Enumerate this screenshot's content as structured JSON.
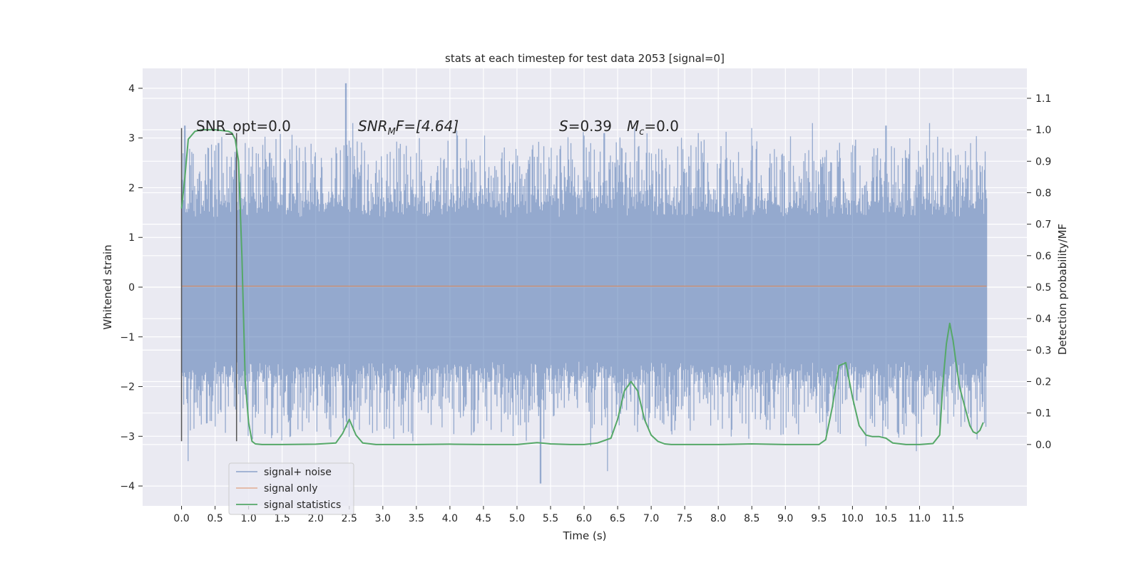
{
  "chart_data": {
    "type": "line",
    "title": "stats at each timestep for test data 2053 [signal=0]",
    "xlabel": "Time (s)",
    "ylabel": "Whitened strain",
    "y2label": "Detection probability/MF",
    "xlim": [
      -0.58,
      12.6
    ],
    "ylim": [
      -4.4,
      4.4
    ],
    "y2lim": [
      -0.195,
      1.195
    ],
    "x_ticks": [
      0.0,
      0.5,
      1.0,
      1.5,
      2.0,
      2.5,
      3.0,
      3.5,
      4.0,
      4.5,
      5.0,
      5.5,
      6.0,
      6.5,
      7.0,
      7.5,
      8.0,
      8.5,
      9.0,
      9.5,
      10.0,
      10.5,
      11.0,
      11.5
    ],
    "x_tick_labels": [
      "0.0",
      "0.5",
      "1.0",
      "1.5",
      "2.0",
      "2.5",
      "3.0",
      "3.5",
      "4.0",
      "4.5",
      "5.0",
      "5.5",
      "6.0",
      "6.5",
      "7.0",
      "7.5",
      "8.0",
      "8.5",
      "9.0",
      "9.5",
      "10.0",
      "10.5",
      "11.0",
      "11.5"
    ],
    "y_ticks": [
      -4,
      -3,
      -2,
      -1,
      0,
      1,
      2,
      3,
      4
    ],
    "y_tick_labels": [
      "−4",
      "−3",
      "−2",
      "−1",
      "0",
      "1",
      "2",
      "3",
      "4"
    ],
    "y2_ticks": [
      0.0,
      0.1,
      0.2,
      0.3,
      0.4,
      0.5,
      0.6,
      0.7,
      0.8,
      0.9,
      1.0,
      1.1
    ],
    "y2_tick_labels": [
      "0.0",
      "0.1",
      "0.2",
      "0.3",
      "0.4",
      "0.5",
      "0.6",
      "0.7",
      "0.8",
      "0.9",
      "1.0",
      "1.1"
    ],
    "grid": true,
    "legend_position": "lower-left",
    "series": [
      {
        "name": "signal+ noise",
        "axis": "left",
        "color": "#4c72b0",
        "x_range": [
          0.0,
          12.0
        ],
        "band": [
          -1.5,
          1.4
        ],
        "peaks_positive": [
          [
            0.05,
            3.25
          ],
          [
            0.55,
            2.9
          ],
          [
            0.95,
            2.9
          ],
          [
            1.0,
            2.8
          ],
          [
            2.45,
            4.1
          ],
          [
            2.55,
            3.3
          ],
          [
            4.1,
            3.15
          ],
          [
            5.6,
            2.65
          ],
          [
            6.0,
            3.05
          ],
          [
            6.3,
            3.1
          ],
          [
            6.75,
            3.2
          ],
          [
            7.7,
            3.1
          ],
          [
            8.5,
            3.2
          ],
          [
            9.4,
            3.3
          ],
          [
            10.5,
            3.25
          ],
          [
            11.15,
            3.3
          ],
          [
            11.9,
            2.45
          ]
        ],
        "peaks_negative": [
          [
            0.1,
            -3.5
          ],
          [
            1.8,
            -2.9
          ],
          [
            3.45,
            -3.1
          ],
          [
            5.35,
            -3.95
          ],
          [
            5.4,
            -3.05
          ],
          [
            6.1,
            -3.2
          ],
          [
            6.35,
            -3.7
          ],
          [
            7.3,
            -2.9
          ],
          [
            9.2,
            -2.8
          ],
          [
            10.2,
            -3.2
          ],
          [
            10.95,
            -3.3
          ],
          [
            11.9,
            -2.5
          ]
        ]
      },
      {
        "name": "signal only",
        "axis": "left",
        "color": "#dd8452",
        "x": [
          0.0,
          12.0
        ],
        "y": [
          0.02,
          0.02
        ]
      },
      {
        "name": "signal statistics",
        "axis": "right",
        "color": "#55a868",
        "x": [
          0.0,
          0.05,
          0.1,
          0.2,
          0.3,
          0.5,
          0.7,
          0.75,
          0.8,
          0.85,
          0.9,
          0.95,
          1.0,
          1.05,
          1.1,
          1.2,
          1.5,
          2.0,
          2.3,
          2.4,
          2.5,
          2.6,
          2.7,
          2.9,
          3.5,
          4.0,
          4.5,
          5.0,
          5.3,
          5.5,
          5.8,
          6.0,
          6.2,
          6.4,
          6.5,
          6.6,
          6.7,
          6.8,
          6.9,
          7.0,
          7.1,
          7.2,
          7.3,
          7.5,
          8.0,
          8.5,
          9.0,
          9.5,
          9.6,
          9.7,
          9.8,
          9.9,
          10.0,
          10.1,
          10.2,
          10.3,
          10.4,
          10.5,
          10.6,
          10.8,
          11.0,
          11.2,
          11.3,
          11.35,
          11.4,
          11.45,
          11.5,
          11.55,
          11.6,
          11.7,
          11.75,
          11.8,
          11.85,
          11.9,
          11.95
        ],
        "y": [
          0.75,
          0.85,
          0.97,
          0.995,
          1.0,
          1.0,
          0.995,
          0.99,
          0.97,
          0.9,
          0.6,
          0.2,
          0.07,
          0.01,
          0.002,
          0.0,
          0.0,
          0.001,
          0.005,
          0.035,
          0.08,
          0.03,
          0.005,
          0.0,
          0.0,
          0.001,
          0.0,
          0.0,
          0.006,
          0.002,
          0.0,
          0.0,
          0.005,
          0.02,
          0.08,
          0.17,
          0.2,
          0.17,
          0.08,
          0.03,
          0.01,
          0.002,
          0.0,
          0.0,
          0.0,
          0.002,
          0.0,
          0.0,
          0.015,
          0.12,
          0.25,
          0.26,
          0.15,
          0.06,
          0.03,
          0.025,
          0.025,
          0.02,
          0.005,
          0.0,
          0.0,
          0.003,
          0.03,
          0.2,
          0.32,
          0.385,
          0.33,
          0.25,
          0.18,
          0.1,
          0.06,
          0.04,
          0.035,
          0.045,
          0.07
        ]
      }
    ],
    "vertical_lines": [
      {
        "x": 0.0,
        "y_range": [
          -3.1,
          3.2
        ],
        "color": "#555555"
      },
      {
        "x": 0.82,
        "y_range": [
          -3.1,
          3.1
        ],
        "color": "#555555"
      }
    ],
    "annotations": [
      {
        "id": "snr-opt",
        "text": "SNR_opt=0.0"
      },
      {
        "id": "snr-mf",
        "main": "SNR",
        "sub": "M",
        "rest": "F=[4.64]"
      },
      {
        "id": "s-val",
        "main": "S",
        "rest": "=0.39"
      },
      {
        "id": "mc-val",
        "main": "M",
        "sub": "c",
        "rest": "=0.0"
      }
    ]
  }
}
